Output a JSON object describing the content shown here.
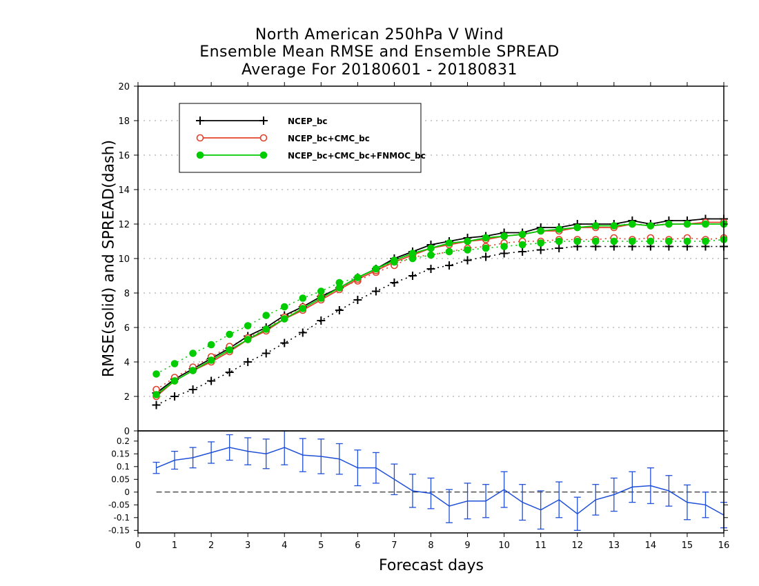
{
  "title_lines": [
    "North American 250hPa V Wind",
    "Ensemble Mean RMSE and Ensemble SPREAD",
    "Average For 20180601 - 20180831"
  ],
  "ylabel": "RMSE(solid) and SPREAD(dash)",
  "xlabel": "Forecast days",
  "colors": {
    "ncep": "#000000",
    "ncep_cmc": "#e0402a",
    "ncep_cmc_fnmoc": "#00cc00",
    "diff": "#1f4fd8",
    "grid": "#999999"
  },
  "chart_data": [
    {
      "type": "line",
      "xlabel": "Forecast days",
      "ylabel": "RMSE(solid) and SPREAD(dash)",
      "xlim": [
        0,
        16
      ],
      "ylim": [
        0,
        20
      ],
      "xticks": [
        "0",
        "1",
        "2",
        "3",
        "4",
        "5",
        "6",
        "7",
        "8",
        "9",
        "10",
        "11",
        "12",
        "13",
        "14",
        "15",
        "16"
      ],
      "yticks": [
        "0",
        "2",
        "4",
        "6",
        "8",
        "10",
        "12",
        "14",
        "16",
        "18",
        "20"
      ],
      "grid": true,
      "legend": "top-left",
      "x": [
        0.5,
        1,
        1.5,
        2,
        2.5,
        3,
        3.5,
        4,
        4.5,
        5,
        5.5,
        6,
        6.5,
        7,
        7.5,
        8,
        8.5,
        9,
        9.5,
        10,
        10.5,
        11,
        11.5,
        12,
        12.5,
        13,
        13.5,
        14,
        14.5,
        15,
        15.5,
        16
      ],
      "series": [
        {
          "name": "NCEP_bc",
          "marker": "plus",
          "rmse": [
            2.2,
            3.0,
            3.6,
            4.2,
            4.8,
            5.5,
            6.0,
            6.7,
            7.2,
            7.8,
            8.3,
            8.9,
            9.4,
            10.0,
            10.4,
            10.8,
            11.0,
            11.2,
            11.3,
            11.5,
            11.5,
            11.8,
            11.8,
            12.0,
            12.0,
            12.0,
            12.2,
            12.0,
            12.2,
            12.2,
            12.3,
            12.3
          ],
          "spread": [
            1.5,
            2.0,
            2.4,
            2.9,
            3.4,
            4.0,
            4.5,
            5.1,
            5.7,
            6.4,
            7.0,
            7.6,
            8.1,
            8.6,
            9.0,
            9.4,
            9.6,
            9.9,
            10.1,
            10.3,
            10.4,
            10.5,
            10.6,
            10.7,
            10.7,
            10.7,
            10.7,
            10.7,
            10.7,
            10.7,
            10.7,
            10.7
          ]
        },
        {
          "name": "NCEP_bc+CMC_bc",
          "marker": "open-circle",
          "rmse": [
            2.0,
            2.9,
            3.5,
            4.0,
            4.6,
            5.3,
            5.8,
            6.5,
            7.0,
            7.6,
            8.2,
            8.8,
            9.3,
            9.8,
            10.2,
            10.6,
            10.8,
            11.0,
            11.1,
            11.3,
            11.4,
            11.6,
            11.6,
            11.8,
            11.8,
            11.8,
            12.0,
            11.9,
            12.0,
            12.0,
            12.1,
            12.1
          ],
          "spread": [
            2.4,
            3.1,
            3.7,
            4.3,
            4.9,
            5.4,
            5.9,
            6.6,
            7.2,
            7.8,
            8.3,
            8.7,
            9.2,
            9.6,
            10.1,
            10.2,
            10.4,
            10.6,
            10.7,
            10.9,
            11.0,
            11.0,
            11.1,
            11.1,
            11.1,
            11.2,
            11.1,
            11.2,
            11.1,
            11.2,
            11.1,
            11.2
          ]
        },
        {
          "name": "NCEP_bc+CMC_bc+FNMOC_bc",
          "marker": "filled-circle",
          "rmse": [
            2.1,
            2.9,
            3.5,
            4.1,
            4.7,
            5.3,
            5.9,
            6.5,
            7.1,
            7.7,
            8.3,
            8.9,
            9.4,
            9.9,
            10.3,
            10.6,
            10.9,
            11.0,
            11.2,
            11.3,
            11.4,
            11.6,
            11.7,
            11.8,
            11.9,
            11.9,
            12.0,
            11.9,
            12.0,
            12.0,
            12.0,
            12.0
          ],
          "spread": [
            3.3,
            3.9,
            4.5,
            5.0,
            5.6,
            6.1,
            6.7,
            7.2,
            7.7,
            8.1,
            8.6,
            8.9,
            9.4,
            9.8,
            10.0,
            10.2,
            10.4,
            10.5,
            10.6,
            10.7,
            10.8,
            10.9,
            11.0,
            11.0,
            11.0,
            11.0,
            11.0,
            11.0,
            11.0,
            11.0,
            11.0,
            11.1
          ]
        }
      ]
    },
    {
      "type": "line",
      "xlim": [
        0,
        16
      ],
      "ylim": [
        -0.16,
        0.24
      ],
      "yticks": [
        "-0.15",
        "-0.1",
        "-0.05",
        "0",
        "0.05",
        "0.1",
        "0.15",
        "0.2"
      ],
      "top_tick": "0",
      "x": [
        0.5,
        1,
        1.5,
        2,
        2.5,
        3,
        3.5,
        4,
        4.5,
        5,
        5.5,
        6,
        6.5,
        7,
        7.5,
        8,
        8.5,
        9,
        9.5,
        10,
        10.5,
        11,
        11.5,
        12,
        12.5,
        13,
        13.5,
        14,
        14.5,
        15,
        15.5,
        16
      ],
      "values": [
        0.095,
        0.125,
        0.135,
        0.155,
        0.175,
        0.16,
        0.15,
        0.175,
        0.145,
        0.14,
        0.13,
        0.095,
        0.095,
        0.05,
        0.005,
        -0.005,
        -0.055,
        -0.035,
        -0.035,
        0.01,
        -0.04,
        -0.07,
        -0.03,
        -0.085,
        -0.03,
        -0.01,
        0.02,
        0.025,
        0.005,
        -0.04,
        -0.05,
        -0.09
      ],
      "error": [
        0.022,
        0.035,
        0.04,
        0.042,
        0.05,
        0.053,
        0.058,
        0.068,
        0.065,
        0.068,
        0.06,
        0.07,
        0.06,
        0.06,
        0.065,
        0.06,
        0.065,
        0.07,
        0.065,
        0.07,
        0.07,
        0.075,
        0.07,
        0.065,
        0.06,
        0.065,
        0.06,
        0.07,
        0.06,
        0.068,
        0.05,
        0.05
      ]
    }
  ]
}
